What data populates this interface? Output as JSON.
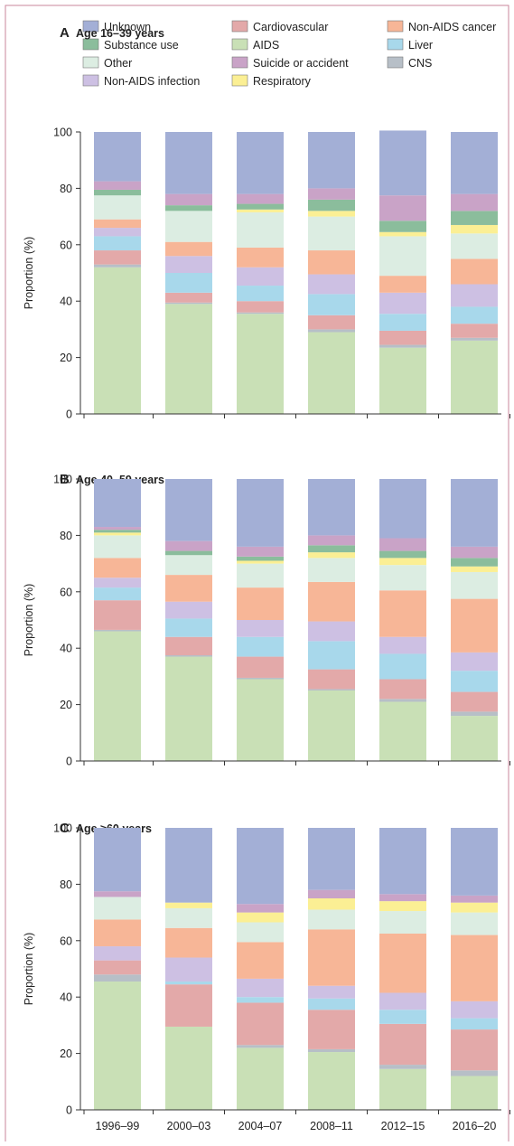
{
  "colors": {
    "Unknown": "#a3afd6",
    "Cardiovascular": "#e3a9a9",
    "Non-AIDS cancer": "#f7b697",
    "Substance use": "#8bbd9c",
    "AIDS": "#c9e0b6",
    "Liver": "#a8d8eb",
    "Other": "#dcede2",
    "Suicide or accident": "#c9a3c7",
    "CNS": "#b7bfc7",
    "Non-AIDS infection": "#cdc0e3",
    "Respiratory": "#fbef94"
  },
  "legend": [
    "Unknown",
    "Cardiovascular",
    "Non-AIDS cancer",
    "Substance use",
    "AIDS",
    "Liver",
    "Other",
    "Suicide or accident",
    "CNS",
    "Non-AIDS infection",
    "Respiratory"
  ],
  "stack_order": [
    "AIDS",
    "CNS",
    "Cardiovascular",
    "Liver",
    "Non-AIDS infection",
    "Non-AIDS cancer",
    "Other",
    "Respiratory",
    "Substance use",
    "Suicide or accident",
    "Unknown"
  ],
  "chart_data": [
    {
      "type": "bar",
      "stacked": true,
      "letter": "A",
      "title": "Age 16–39 years",
      "ylabel": "Proportion (%)",
      "ylim": [
        0,
        100
      ],
      "yticks": [
        0,
        20,
        40,
        60,
        80,
        100
      ],
      "categories": [
        "1996–99",
        "2000–03",
        "2004–07",
        "2008–11",
        "2012–15",
        "2016–20"
      ],
      "series": [
        {
          "name": "AIDS",
          "values": [
            52,
            39,
            35.5,
            29,
            23.5,
            26
          ]
        },
        {
          "name": "CNS",
          "values": [
            1,
            0.5,
            0.5,
            1,
            1,
            1
          ]
        },
        {
          "name": "Cardiovascular",
          "values": [
            5,
            3.5,
            4,
            5,
            5,
            5
          ]
        },
        {
          "name": "Liver",
          "values": [
            5,
            7,
            5.5,
            7.5,
            6,
            6
          ]
        },
        {
          "name": "Non-AIDS infection",
          "values": [
            3,
            6,
            6.5,
            7,
            7.5,
            8
          ]
        },
        {
          "name": "Non-AIDS cancer",
          "values": [
            3,
            5,
            7,
            8.5,
            6,
            9
          ]
        },
        {
          "name": "Other",
          "values": [
            8.5,
            11,
            12.5,
            12,
            14,
            9
          ]
        },
        {
          "name": "Respiratory",
          "values": [
            0,
            0,
            1,
            2,
            1.5,
            3
          ]
        },
        {
          "name": "Substance use",
          "values": [
            2,
            2,
            2,
            4,
            4,
            5
          ]
        },
        {
          "name": "Suicide or accident",
          "values": [
            3,
            4,
            3.5,
            4,
            9,
            6
          ]
        },
        {
          "name": "Unknown",
          "values": [
            17.5,
            22,
            22,
            20,
            23,
            22
          ]
        }
      ]
    },
    {
      "type": "bar",
      "stacked": true,
      "letter": "B",
      "title": "Age 40–59 years",
      "ylabel": "Proportion (%)",
      "ylim": [
        0,
        100
      ],
      "yticks": [
        0,
        20,
        40,
        60,
        80,
        100
      ],
      "categories": [
        "1996–99",
        "2000–03",
        "2004–07",
        "2008–11",
        "2012–15",
        "2016–20"
      ],
      "series": [
        {
          "name": "AIDS",
          "values": [
            46,
            37,
            29,
            25,
            21,
            16
          ]
        },
        {
          "name": "CNS",
          "values": [
            0.5,
            0.5,
            0.5,
            0.5,
            1,
            1.5
          ]
        },
        {
          "name": "Cardiovascular",
          "values": [
            10.5,
            6.5,
            7.5,
            7,
            7,
            7
          ]
        },
        {
          "name": "Liver",
          "values": [
            4.5,
            6.5,
            7,
            10,
            9,
            7.5
          ]
        },
        {
          "name": "Non-AIDS infection",
          "values": [
            3.5,
            6,
            6,
            7,
            6,
            6.5
          ]
        },
        {
          "name": "Non-AIDS cancer",
          "values": [
            7,
            9.5,
            11.5,
            14,
            16.5,
            19
          ]
        },
        {
          "name": "Other",
          "values": [
            8,
            7,
            8.5,
            8.5,
            9,
            9.5
          ]
        },
        {
          "name": "Respiratory",
          "values": [
            1,
            0,
            1,
            2,
            2.5,
            2
          ]
        },
        {
          "name": "Substance use",
          "values": [
            1,
            1.5,
            1.5,
            2.5,
            2.5,
            3
          ]
        },
        {
          "name": "Suicide or accident",
          "values": [
            1,
            3.5,
            3.5,
            3.5,
            4.5,
            4
          ]
        },
        {
          "name": "Unknown",
          "values": [
            17,
            22,
            24,
            20,
            21,
            24
          ]
        }
      ]
    },
    {
      "type": "bar",
      "stacked": true,
      "letter": "C",
      "title": "Age ≥60 years",
      "ylabel": "Proportion (%)",
      "ylim": [
        0,
        100
      ],
      "yticks": [
        0,
        20,
        40,
        60,
        80,
        100
      ],
      "categories": [
        "1996–99",
        "2000–03",
        "2004–07",
        "2008–11",
        "2012–15",
        "2016–20"
      ],
      "series": [
        {
          "name": "AIDS",
          "values": [
            45.5,
            29.5,
            22,
            20.5,
            14.5,
            12
          ]
        },
        {
          "name": "CNS",
          "values": [
            2.5,
            0,
            1,
            1,
            1.5,
            2
          ]
        },
        {
          "name": "Cardiovascular",
          "values": [
            5,
            15,
            15,
            14,
            14.5,
            14.5
          ]
        },
        {
          "name": "Liver",
          "values": [
            0,
            1,
            2,
            4,
            5,
            4
          ]
        },
        {
          "name": "Non-AIDS infection",
          "values": [
            5,
            8.5,
            6.5,
            4.5,
            6,
            6
          ]
        },
        {
          "name": "Non-AIDS cancer",
          "values": [
            9.5,
            10.5,
            13,
            20,
            21,
            23.5
          ]
        },
        {
          "name": "Other",
          "values": [
            8,
            7,
            7,
            7,
            8,
            8
          ]
        },
        {
          "name": "Respiratory",
          "values": [
            0,
            2,
            3.5,
            4,
            3.5,
            3.5
          ]
        },
        {
          "name": "Substance use",
          "values": [
            0,
            0,
            0,
            0,
            0,
            0
          ]
        },
        {
          "name": "Suicide or accident",
          "values": [
            2,
            0,
            3,
            3,
            2.5,
            2.5
          ]
        },
        {
          "name": "Unknown",
          "values": [
            22.5,
            26.5,
            27,
            22,
            23.5,
            24
          ]
        }
      ]
    }
  ]
}
